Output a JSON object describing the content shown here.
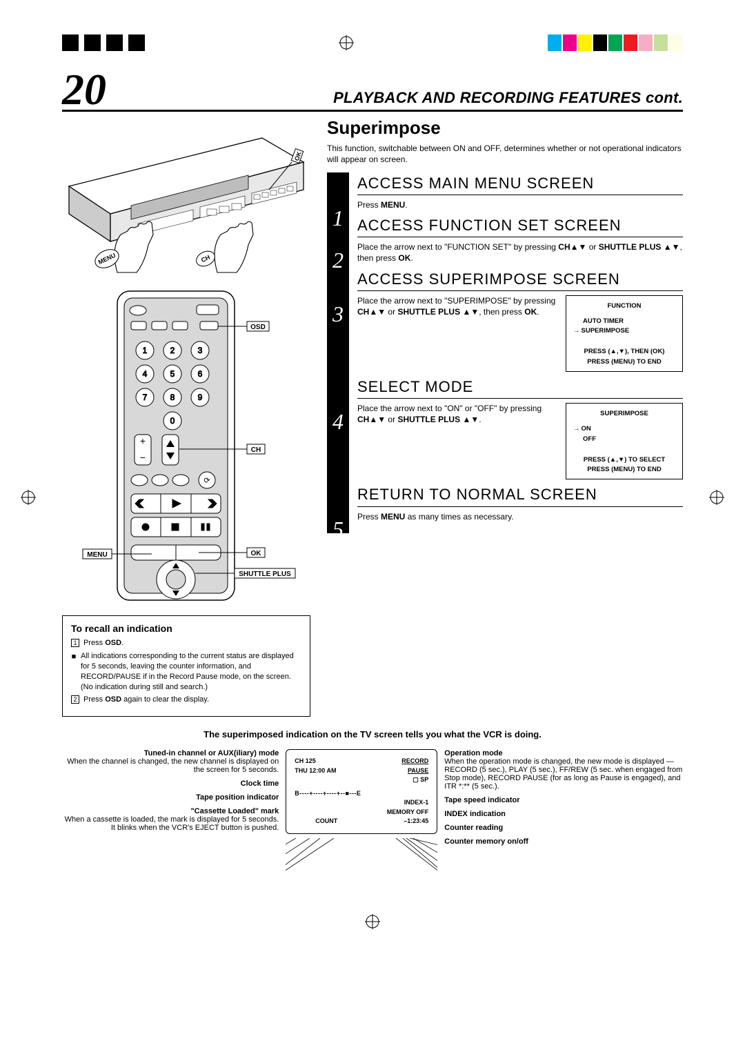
{
  "colorbar": [
    "#00aeef",
    "#ec008c",
    "#fff200",
    "#000000",
    "#00a651",
    "#ed1c24",
    "#f7adc3",
    "#c4e09b",
    "#fffde6"
  ],
  "page_number": "20",
  "header_title": "PLAYBACK AND RECORDING FEATURES cont.",
  "section_title": "Superimpose",
  "intro_text": "This function, switchable between ON and OFF, determines whether or not operational indicators will appear on screen.",
  "steps": [
    {
      "num": "1",
      "title": "ACCESS MAIN MENU SCREEN",
      "body": "Press <b>MENU</b>."
    },
    {
      "num": "2",
      "title": "ACCESS FUNCTION SET SCREEN",
      "body": "Place the arrow next to \"FUNCTION SET\" by pressing <b>CH▲▼</b> or <b>SHUTTLE PLUS ▲▼</b>, then press <b>OK</b>."
    },
    {
      "num": "3",
      "title": "ACCESS SUPERIMPOSE SCREEN",
      "body": "Place the arrow next to \"SUPERIMPOSE\" by pressing <b>CH▲▼</b> or <b>SHUTTLE PLUS ▲▼</b>, then press <b>OK</b>."
    },
    {
      "num": "4",
      "title": "SELECT MODE",
      "body": "Place the arrow next to \"ON\" or \"OFF\" by pressing <b>CH▲▼</b> or <b>SHUTTLE PLUS ▲▼</b>."
    },
    {
      "num": "5",
      "title": "RETURN TO NORMAL SCREEN",
      "body": "Press <b>MENU</b> as many times as necessary."
    }
  ],
  "osd1": {
    "title": "FUNCTION",
    "l1": "AUTO TIMER",
    "l2": "SUPERIMPOSE",
    "f1": "PRESS (▲,▼), THEN (OK)",
    "f2": "PRESS (MENU) TO END"
  },
  "osd2": {
    "title": "SUPERIMPOSE",
    "l1": "ON",
    "l2": "OFF",
    "f1": "PRESS (▲,▼) TO SELECT",
    "f2": "PRESS (MENU) TO END"
  },
  "vcr_labels": {
    "ok": "OK",
    "ch": "CH",
    "menu": "MENU"
  },
  "remote_labels": {
    "osd": "OSD",
    "ch": "CH",
    "ok": "OK",
    "menu": "MENU",
    "shuttle": "SHUTTLE PLUS"
  },
  "recall": {
    "title": "To recall an indication",
    "n1": "1",
    "n2": "2",
    "t1": "Press <b>OSD</b>.",
    "t2": "All indications corresponding to the current status are displayed for 5 seconds, leaving the counter information, and RECORD/PAUSE if in the Record Pause mode, on the screen. (No indication during still and search.)",
    "t3": "Press <b>OSD</b> again to clear the display."
  },
  "bottom_bold": "The superimposed indication on the TV screen tells you what the VCR is doing.",
  "tv_left": [
    {
      "h": "Tuned-in channel or AUX(iliary) mode",
      "b": "When the channel is changed, the new channel is displayed on the screen for 5 seconds."
    },
    {
      "h": "Clock time",
      "b": ""
    },
    {
      "h": "Tape position indicator",
      "b": ""
    },
    {
      "h": "\"Cassette Loaded\" mark",
      "b": "When a cassette is loaded, the mark is displayed for 5 seconds. It blinks when the VCR's EJECT button is pushed."
    }
  ],
  "tv_right": [
    {
      "h": "Operation mode",
      "b": "When the operation mode is changed, the new mode is displayed — RECORD (5 sec.), PLAY (5 sec.), FF/REW (5 sec. when engaged from Stop mode), RECORD PAUSE (for as long as Pause is engaged), and ITR *:** (5 sec.)."
    },
    {
      "h": "Tape speed indicator",
      "b": ""
    },
    {
      "h": "INDEX indication",
      "b": ""
    },
    {
      "h": "Counter reading",
      "b": ""
    },
    {
      "h": "Counter memory on/off",
      "b": ""
    }
  ],
  "tv_screen": {
    "r1a": "CH   125",
    "r1b": "RECORD",
    "r2a": "THU  12:00 AM",
    "r2b": "PAUSE",
    "r3b": "▢ SP",
    "r4": "B----+----+----+--■---E",
    "r5b": "INDEX-1",
    "r6b": "MEMORY OFF",
    "r7a": "COUNT",
    "r7b": "–1:23:45"
  }
}
